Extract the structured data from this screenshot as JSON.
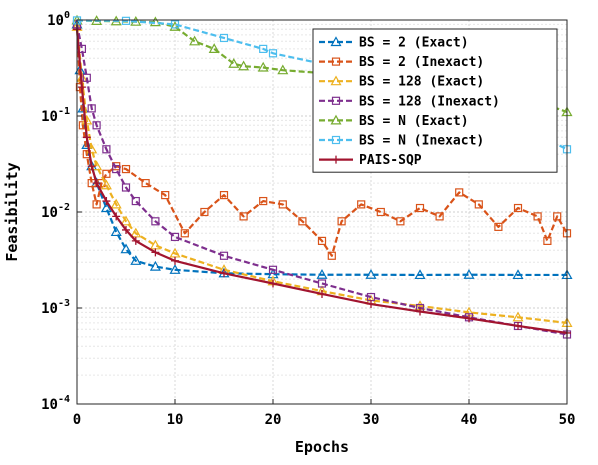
{
  "chart_data": {
    "type": "line",
    "title": "",
    "xlabel": "Epochs",
    "ylabel": "Feasibility",
    "xlim": [
      0,
      50
    ],
    "ylim": [
      0.0001,
      1
    ],
    "yscale": "log",
    "grid": true,
    "legend_position": "top-right",
    "x_ticks": [
      "0",
      "10",
      "20",
      "30",
      "40",
      "50"
    ],
    "y_ticks": [
      {
        "base": "10",
        "exp": "0"
      },
      {
        "base": "10",
        "exp": "-1"
      },
      {
        "base": "10",
        "exp": "-2"
      },
      {
        "base": "10",
        "exp": "-3"
      },
      {
        "base": "10",
        "exp": "-4"
      }
    ],
    "series": [
      {
        "name": "BS = 2 (Exact)",
        "color": "#0072BD",
        "marker": "triangle-up",
        "style": "dashed",
        "x": [
          0,
          0.3,
          0.6,
          1,
          1.5,
          2,
          3,
          4,
          5,
          6,
          8,
          10,
          15,
          20,
          25,
          30,
          35,
          40,
          45,
          50
        ],
        "y": [
          0.9,
          0.3,
          0.12,
          0.05,
          0.03,
          0.02,
          0.011,
          0.0062,
          0.0041,
          0.0031,
          0.0027,
          0.0025,
          0.0023,
          0.00225,
          0.00222,
          0.00222,
          0.00221,
          0.00222,
          0.00221,
          0.00221
        ]
      },
      {
        "name": "BS = 2 (Inexact)",
        "color": "#D95319",
        "marker": "square",
        "style": "dashed",
        "x": [
          0,
          0.3,
          0.6,
          1,
          1.5,
          2,
          2.5,
          3,
          4,
          5,
          7,
          9,
          11,
          13,
          15,
          17,
          19,
          21,
          23,
          25,
          26,
          27,
          29,
          31,
          33,
          35,
          37,
          39,
          41,
          43,
          45,
          47,
          48,
          49,
          50
        ],
        "y": [
          0.9,
          0.2,
          0.08,
          0.04,
          0.02,
          0.012,
          0.02,
          0.025,
          0.03,
          0.028,
          0.02,
          0.015,
          0.006,
          0.01,
          0.015,
          0.009,
          0.013,
          0.012,
          0.008,
          0.005,
          0.0035,
          0.008,
          0.012,
          0.01,
          0.008,
          0.011,
          0.009,
          0.016,
          0.012,
          0.007,
          0.011,
          0.009,
          0.005,
          0.009,
          0.006
        ]
      },
      {
        "name": "BS = 128 (Exact)",
        "color": "#EDB120",
        "marker": "triangle-up",
        "style": "dashed",
        "x": [
          0,
          0.5,
          1,
          1.5,
          2,
          3,
          4,
          5,
          6,
          8,
          10,
          15,
          20,
          25,
          30,
          35,
          40,
          45,
          50
        ],
        "y": [
          0.85,
          0.25,
          0.09,
          0.045,
          0.03,
          0.019,
          0.012,
          0.008,
          0.006,
          0.0045,
          0.0037,
          0.0025,
          0.0019,
          0.0015,
          0.0012,
          0.00105,
          0.0009,
          0.0008,
          0.0007
        ]
      },
      {
        "name": "BS = 128 (Inexact)",
        "color": "#7E2F8E",
        "marker": "square",
        "style": "dashed",
        "x": [
          0,
          0.5,
          1,
          1.5,
          2,
          3,
          4,
          5,
          6,
          8,
          10,
          15,
          20,
          25,
          30,
          35,
          40,
          45,
          50
        ],
        "y": [
          0.9,
          0.5,
          0.25,
          0.12,
          0.08,
          0.045,
          0.028,
          0.018,
          0.013,
          0.008,
          0.0055,
          0.0035,
          0.0025,
          0.0018,
          0.0013,
          0.001,
          0.0008,
          0.00065,
          0.00053
        ]
      },
      {
        "name": "BS = N (Exact)",
        "color": "#77AC30",
        "marker": "triangle-up",
        "style": "dashed",
        "x": [
          0,
          2,
          4,
          6,
          8,
          10,
          12,
          14,
          16,
          17,
          19,
          21,
          25,
          30,
          35,
          40,
          45,
          48,
          50
        ],
        "y": [
          0.99,
          0.98,
          0.97,
          0.96,
          0.95,
          0.85,
          0.6,
          0.5,
          0.35,
          0.33,
          0.32,
          0.3,
          0.28,
          0.27,
          0.26,
          0.24,
          0.2,
          0.13,
          0.11
        ]
      },
      {
        "name": "BS = N (Inexact)",
        "color": "#4DBEEE",
        "marker": "square",
        "style": "dashed",
        "x": [
          0,
          5,
          10,
          15,
          19,
          20,
          25,
          30,
          35,
          40,
          45,
          50
        ],
        "y": [
          0.99,
          0.98,
          0.9,
          0.65,
          0.5,
          0.45,
          0.35,
          0.3,
          0.22,
          0.15,
          0.08,
          0.045
        ]
      },
      {
        "name": "PAIS-SQP",
        "color": "#A2142F",
        "marker": "plus",
        "style": "solid",
        "x": [
          0,
          0.5,
          1,
          1.5,
          2,
          3,
          4,
          5,
          6,
          8,
          10,
          15,
          20,
          25,
          30,
          35,
          40,
          45,
          50
        ],
        "y": [
          0.8,
          0.2,
          0.06,
          0.03,
          0.02,
          0.013,
          0.009,
          0.0065,
          0.005,
          0.0038,
          0.0031,
          0.0023,
          0.0018,
          0.0014,
          0.0011,
          0.00092,
          0.00078,
          0.00065,
          0.00055
        ]
      }
    ]
  }
}
